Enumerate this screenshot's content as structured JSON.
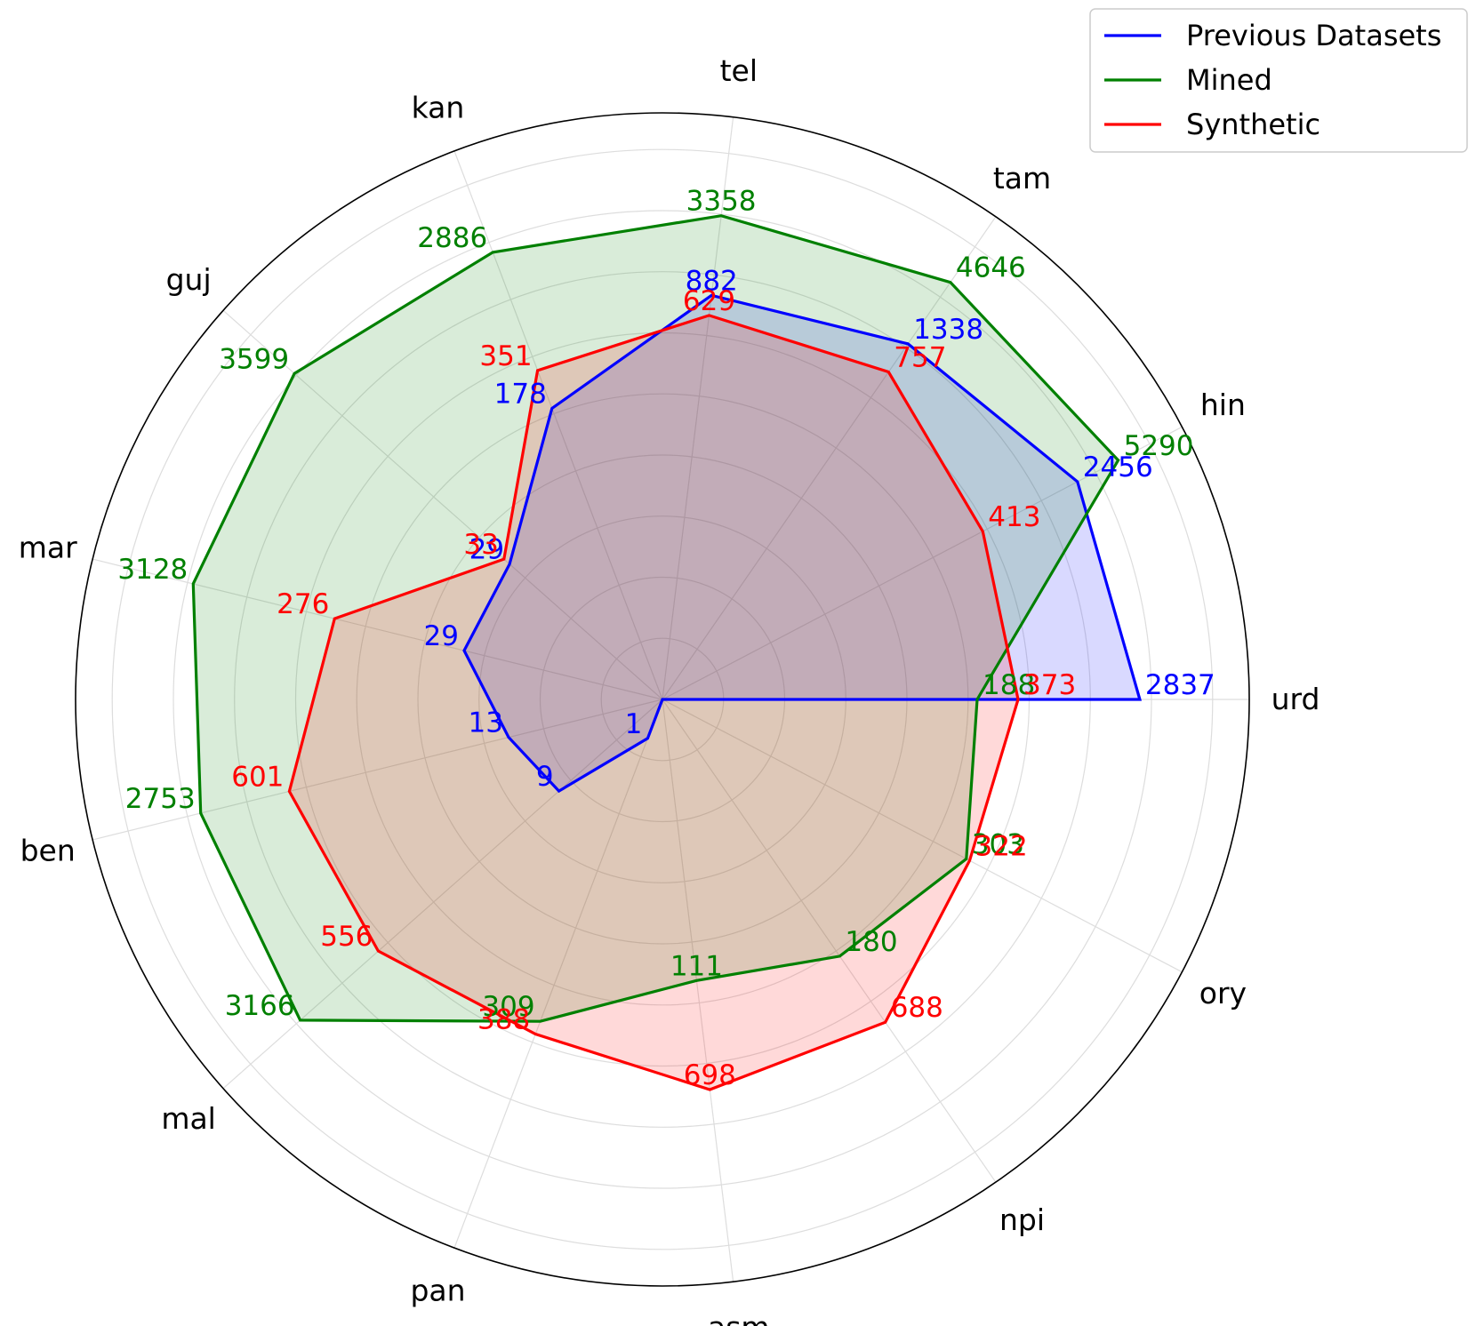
{
  "chart_data": {
    "type": "radar",
    "categories": [
      "urd",
      "hin",
      "tam",
      "tel",
      "kan",
      "guj",
      "mar",
      "ben",
      "mal",
      "pan",
      "asm",
      "npi",
      "ory"
    ],
    "series": [
      {
        "name": "Previous Datasets",
        "color": "#0000ff",
        "values": [
          2837,
          2456,
          1338,
          882,
          178,
          29,
          29,
          13,
          9,
          1,
          0,
          0,
          0
        ],
        "labels": [
          "2837",
          "2456",
          "1338",
          "882",
          "178",
          "29",
          "29",
          "13",
          "9",
          "1",
          "",
          "",
          ""
        ]
      },
      {
        "name": "Mined",
        "color": "#008000",
        "values": [
          188,
          5290,
          4646,
          3358,
          2886,
          3599,
          3128,
          2753,
          3166,
          309,
          111,
          180,
          303
        ],
        "labels": [
          "188",
          "5290",
          "4646",
          "3358",
          "2886",
          "3599",
          "3128",
          "2753",
          "3166",
          "309",
          "111",
          "180",
          "303"
        ]
      },
      {
        "name": "Synthetic",
        "color": "#ff0000",
        "values": [
          373,
          413,
          757,
          629,
          351,
          33,
          276,
          601,
          556,
          388,
          698,
          688,
          322
        ],
        "labels": [
          "373",
          "413",
          "757",
          "629",
          "351",
          "33",
          "276",
          "601",
          "556",
          "388",
          "698",
          "688",
          "322"
        ]
      }
    ],
    "radial_scale": "log",
    "grid": true,
    "legend_position": "top-right"
  }
}
